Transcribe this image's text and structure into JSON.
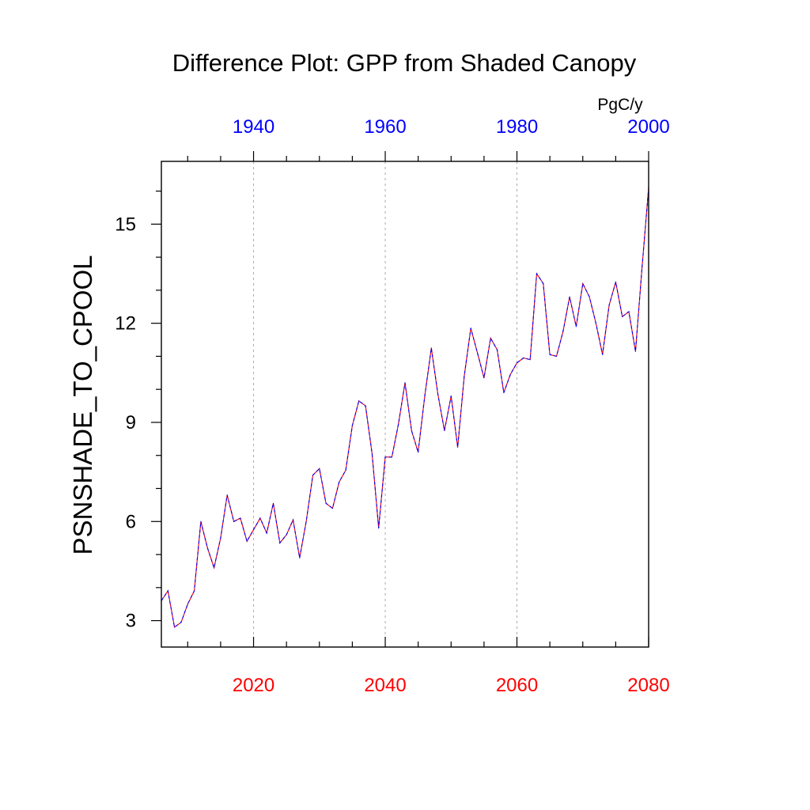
{
  "chart_data": {
    "type": "line",
    "title": "Difference Plot: GPP from Shaded Canopy",
    "ylabel": "PSNSHADE_TO_CPOOL",
    "units": "PgC/y",
    "bottom_axis": {
      "range": [
        2006,
        2080
      ],
      "ticks": [
        "2020",
        "2040",
        "2060",
        "2080"
      ],
      "color": "#ff0000"
    },
    "top_axis": {
      "range": [
        1926,
        2000
      ],
      "ticks": [
        "1940",
        "1960",
        "1980",
        "2000"
      ],
      "color": "#0000ff"
    },
    "ylim": [
      2.2,
      16.9
    ],
    "yticks": [
      "3",
      "6",
      "9",
      "12",
      "15"
    ],
    "grid": "vertical dotted at labelled x ticks",
    "series": [
      {
        "color_a": "#ff0000",
        "color_b": "#0000ff",
        "x": [
          2006,
          2007,
          2008,
          2009,
          2010,
          2011,
          2012,
          2013,
          2014,
          2015,
          2016,
          2017,
          2018,
          2019,
          2020,
          2021,
          2022,
          2023,
          2024,
          2025,
          2026,
          2027,
          2028,
          2029,
          2030,
          2031,
          2032,
          2033,
          2034,
          2035,
          2036,
          2037,
          2038,
          2039,
          2040,
          2041,
          2042,
          2043,
          2044,
          2045,
          2046,
          2047,
          2048,
          2049,
          2050,
          2051,
          2052,
          2053,
          2054,
          2055,
          2056,
          2057,
          2058,
          2059,
          2060,
          2061,
          2062,
          2063,
          2064,
          2065,
          2066,
          2067,
          2068,
          2069,
          2070,
          2071,
          2072,
          2073,
          2074,
          2075,
          2076,
          2077,
          2078,
          2079,
          2080
        ],
        "values": [
          3.6,
          3.9,
          2.8,
          2.95,
          3.5,
          3.9,
          6.0,
          5.2,
          4.6,
          5.5,
          6.8,
          6.0,
          6.1,
          5.4,
          5.75,
          6.1,
          5.65,
          6.55,
          5.35,
          5.6,
          6.05,
          4.9,
          6.0,
          7.4,
          7.6,
          6.55,
          6.4,
          7.2,
          7.55,
          8.9,
          9.65,
          9.5,
          8.05,
          5.8,
          7.95,
          7.95,
          8.95,
          10.2,
          8.75,
          8.1,
          9.8,
          11.25,
          9.85,
          8.75,
          9.8,
          8.25,
          10.4,
          11.85,
          11.1,
          10.35,
          11.55,
          11.2,
          9.9,
          10.45,
          10.8,
          10.95,
          10.9,
          13.5,
          13.2,
          11.05,
          11.0,
          11.75,
          12.8,
          11.9,
          13.2,
          12.8,
          12.0,
          11.05,
          12.55,
          13.25,
          12.2,
          12.35,
          11.15,
          13.7,
          16.1
        ]
      }
    ]
  }
}
